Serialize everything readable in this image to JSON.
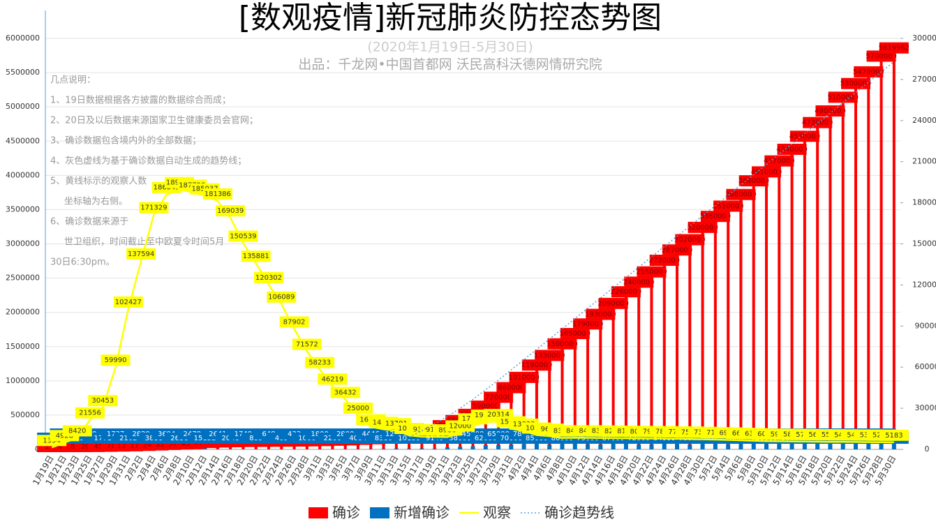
{
  "chart_data": {
    "type": "bar",
    "title": "[数观疫情]新冠肺炎防控态势图",
    "subtitle": "(2020年1月19日-5月30日)",
    "source": "出品：千龙网•中国首都网   沃民高科沃德网情研究院",
    "notes": {
      "title": "几点说明：",
      "lines": [
        "1、19日数据根据各方披露的数据综合而成；",
        "2、20日及以后数据来源国家卫生健康委员会官网；",
        "3、确诊数据包含境内外的全部数据；",
        "4、灰色虚线为基于确诊数据自动生成的趋势线；",
        "5、黄线标示的观察人数",
        "坐标轴为右侧。",
        "6、确诊数据来源于",
        "世卫组织，时间截止至中欧夏令时间5月",
        "30日6:30pm。"
      ]
    },
    "categories": [
      "1月19日",
      "1月21日",
      "1月23日",
      "1月25日",
      "1月27日",
      "1月29日",
      "1月31日",
      "2月2日",
      "2月4日",
      "2月6日",
      "2月8日",
      "2月10日",
      "2月12日",
      "2月14日",
      "2月16日",
      "2月18日",
      "2月20日",
      "2月22日",
      "2月24日",
      "2月26日",
      "2月28日",
      "3月1日",
      "3月3日",
      "3月5日",
      "3月7日",
      "3月9日",
      "3月11日",
      "3月13日",
      "3月15日",
      "3月17日",
      "3月19日",
      "3月21日",
      "3月23日",
      "3月25日",
      "3月27日",
      "3月29日",
      "3月31日",
      "4月2日",
      "4月4日",
      "4月6日",
      "4月8日",
      "4月10日",
      "4月12日",
      "4月14日",
      "4月16日",
      "4月18日",
      "4月20日",
      "4月22日",
      "4月24日",
      "4月26日",
      "4月28日",
      "4月30日",
      "5月2日",
      "5月4日",
      "5月6日",
      "5月8日",
      "5月10日",
      "5月12日",
      "5月14日",
      "5月16日",
      "5月18日",
      "5月20日",
      "5月22日",
      "5月24日",
      "5月26日",
      "5月28日",
      "5月30日"
    ],
    "series": [
      {
        "name": "确诊",
        "color": "#ff0000",
        "values": [
          200,
          440,
          830,
          2000,
          4500,
          7800,
          12000,
          17400,
          24500,
          31500,
          37500,
          43000,
          60000,
          67000,
          71000,
          75000,
          76000,
          78500,
          79500,
          81000,
          84000,
          88000,
          93000,
          98000,
          106000,
          114000,
          126000,
          146000,
          170000,
          200000,
          245000,
          305000,
          380000,
          470000,
          590000,
          720000,
          860000,
          1010000,
          1190000,
          1330000,
          1500000,
          1650000,
          1790000,
          1930000,
          2090000,
          2260000,
          2400000,
          2550000,
          2720000,
          2870000,
          3020000,
          3200000,
          3360000,
          3510000,
          3680000,
          3880000,
          4010000,
          4170000,
          4340000,
          4530000,
          4730000,
          4900000,
          5100000,
          5300000,
          5470000,
          5700000,
          5819962
        ]
      },
      {
        "name": "新增确诊",
        "color": "#0070c0",
        "values": [
          17,
          77,
          259,
          688,
          1771,
          1737,
          2102,
          2829,
          3886,
          3694,
          2656,
          2478,
          15152,
          2641,
          2048,
          1749,
          889,
          648,
          409,
          433,
          1000,
          1800,
          2200,
          2800,
          4094,
          4446,
          8380,
          12578,
          10180,
          14000,
          9140,
          30000,
          38000,
          45000,
          62000,
          65000,
          70000,
          78000,
          85000,
          70000,
          80000,
          86000,
          75000,
          70000,
          87000,
          82000,
          72000,
          75000,
          84000,
          80000,
          70000,
          82000,
          86000,
          76000,
          80000,
          89000,
          80000,
          80000,
          86000,
          94000,
          88000,
          96000,
          105000,
          98000,
          92000,
          115226,
          117000
        ]
      },
      {
        "name": "观察",
        "color": "#ffff00",
        "type": "line",
        "axis": "y2",
        "values": [
          1394,
          4928,
          8420,
          21556,
          30453,
          59990,
          102427,
          137594,
          171329,
          186045,
          189660,
          187728,
          185037,
          181386,
          169039,
          150539,
          135881,
          120302,
          106089,
          87902,
          71572,
          58233,
          46219,
          36432,
          25000,
          16500,
          14607,
          13701,
          10180,
          9300,
          9140,
          8980,
          12000,
          17198,
          19853,
          20314,
          15000,
          13333,
          10435,
          9650,
          8309,
          8484,
          8400,
          8300,
          8200,
          8100,
          8000,
          7900,
          7800,
          7700,
          7500,
          7300,
          7100,
          6900,
          6600,
          6300,
          6000,
          5900,
          5800,
          5700,
          5600,
          5500,
          5450,
          5400,
          5300,
          5250,
          5183
        ]
      },
      {
        "name": "确诊趋势线",
        "color": "#5b9bd5",
        "type": "line",
        "dashed": true,
        "values": [
          null,
          null,
          null,
          null,
          null,
          null,
          null,
          null,
          null,
          null,
          null,
          null,
          null,
          null,
          null,
          null,
          null,
          null,
          null,
          null,
          null,
          null,
          null,
          null,
          null,
          null,
          null,
          100000,
          180000,
          270000,
          370000,
          480000,
          600000,
          730000,
          870000,
          1010000,
          1160000,
          1310000,
          1460000,
          1610000,
          1760000,
          1910000,
          2060000,
          2210000,
          2360000,
          2510000,
          2660000,
          2810000,
          2960000,
          3110000,
          3260000,
          3410000,
          3560000,
          3710000,
          3860000,
          4010000,
          4160000,
          4310000,
          4460000,
          4610000,
          4760000,
          4910000,
          5060000,
          5210000,
          5360000,
          5510000,
          5660000
        ]
      }
    ],
    "ylim": [
      0,
      6000000
    ],
    "yticks": [
      0,
      500000,
      1000000,
      1500000,
      2000000,
      2500000,
      3000000,
      3500000,
      4000000,
      4500000,
      5000000,
      5500000,
      6000000
    ],
    "y2lim": [
      0,
      300000
    ],
    "y2ticks": [
      0,
      30000,
      60000,
      90000,
      120000,
      150000,
      180000,
      210000,
      240000,
      270000,
      300000
    ],
    "grid": true,
    "legend": "bottom"
  }
}
